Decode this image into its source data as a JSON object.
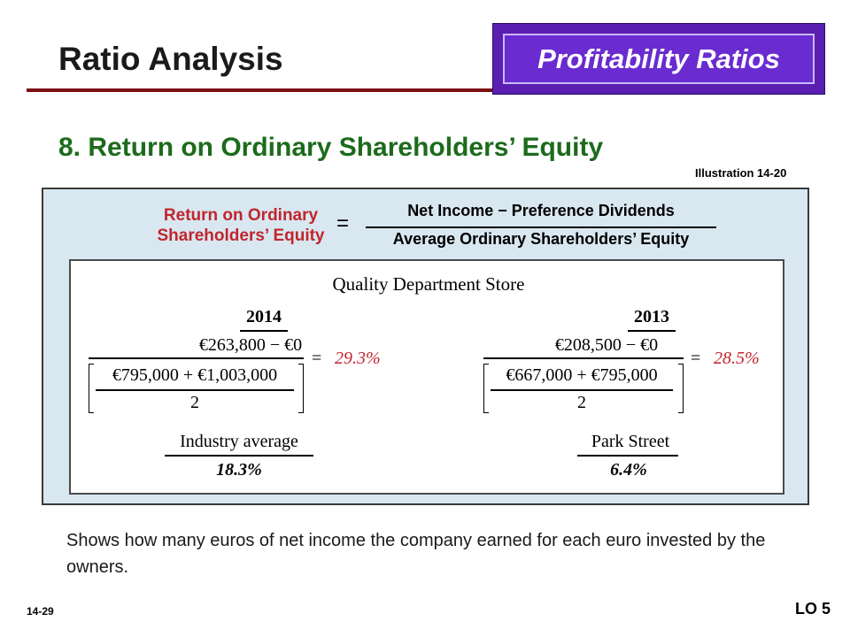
{
  "header": {
    "title": "Ratio Analysis",
    "badge": "Profitability Ratios",
    "subtitle": "8. Return on Ordinary Shareholders’ Equity",
    "illustration": "Illustration 14-20"
  },
  "formula": {
    "label_line1": "Return on Ordinary",
    "label_line2": "Shareholders’ Equity",
    "equals": "=",
    "numerator": "Net Income − Preference Dividends",
    "denominator": "Average Ordinary Shareholders’ Equity"
  },
  "example": {
    "company": "Quality Department Store",
    "years": [
      {
        "year": "2014",
        "numerator": "€263,800 − €0",
        "denominator": "€795,000 + €1,003,000",
        "divisor": "2",
        "equals": "=",
        "result": "29.3%"
      },
      {
        "year": "2013",
        "numerator": "€208,500 − €0",
        "denominator": "€667,000 + €795,000",
        "divisor": "2",
        "equals": "=",
        "result": "28.5%"
      }
    ],
    "benchmarks": [
      {
        "label": "Industry average",
        "value": "18.3%"
      },
      {
        "label": "Park Street",
        "value": "6.4%"
      }
    ]
  },
  "description": "Shows how many euros of net income the company earned for each euro invested by the owners.",
  "footer": {
    "slide_number": "14-29",
    "learning_objective": "LO 5"
  },
  "colors": {
    "title_rule": "#7a0f14",
    "badge_fill": "#6a2bd0",
    "subtitle": "#1c6b1c",
    "formula_label": "#c0262c",
    "panel_background": "#d9e7f1"
  }
}
